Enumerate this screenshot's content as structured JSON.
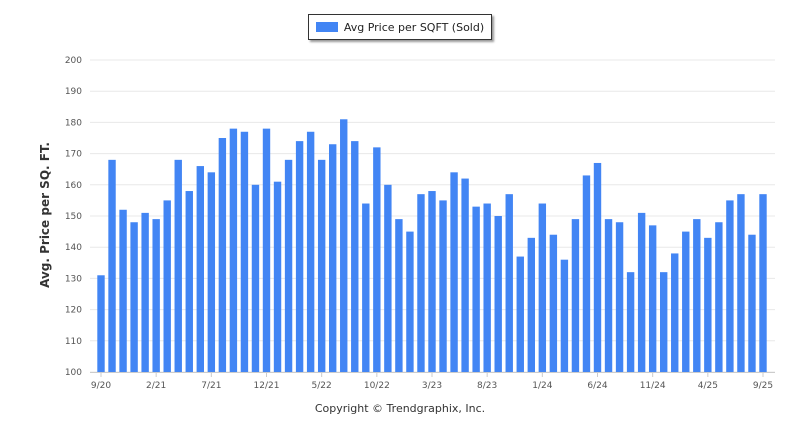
{
  "chart_data": {
    "type": "bar",
    "legend": "Avg Price per SQFT (Sold)",
    "legend_position": "top-center",
    "ylabel": "Avg. Price per SQ. FT.",
    "xlabel": "",
    "ylim": [
      100,
      200
    ],
    "yticks": [
      100,
      110,
      120,
      130,
      140,
      150,
      160,
      170,
      180,
      190,
      200
    ],
    "grid": true,
    "color": "#4285f4",
    "xtick_labels": [
      {
        "index": 0,
        "label": "9/20"
      },
      {
        "index": 5,
        "label": "2/21"
      },
      {
        "index": 10,
        "label": "7/21"
      },
      {
        "index": 15,
        "label": "12/21"
      },
      {
        "index": 20,
        "label": "5/22"
      },
      {
        "index": 25,
        "label": "10/22"
      },
      {
        "index": 30,
        "label": "3/23"
      },
      {
        "index": 35,
        "label": "8/23"
      },
      {
        "index": 40,
        "label": "1/24"
      },
      {
        "index": 45,
        "label": "6/24"
      },
      {
        "index": 50,
        "label": "11/24"
      },
      {
        "index": 55,
        "label": "4/25"
      },
      {
        "index": 60,
        "label": "9/25"
      }
    ],
    "categories": [
      "9/20",
      "10/20",
      "11/20",
      "12/20",
      "1/21",
      "2/21",
      "3/21",
      "4/21",
      "5/21",
      "6/21",
      "7/21",
      "8/21",
      "9/21",
      "10/21",
      "11/21",
      "12/21",
      "1/22",
      "2/22",
      "3/22",
      "4/22",
      "5/22",
      "6/22",
      "7/22",
      "8/22",
      "9/22",
      "10/22",
      "11/22",
      "12/22",
      "1/23",
      "2/23",
      "3/23",
      "4/23",
      "5/23",
      "6/23",
      "7/23",
      "8/23",
      "9/23",
      "10/23",
      "11/23",
      "12/23",
      "1/24",
      "2/24",
      "3/24",
      "4/24",
      "5/24",
      "6/24",
      "7/24",
      "8/24",
      "9/24",
      "10/24",
      "11/24",
      "12/24",
      "1/25",
      "2/25",
      "3/25",
      "4/25",
      "5/25",
      "6/25",
      "7/25",
      "8/25",
      "9/25"
    ],
    "values": [
      131,
      168,
      152,
      148,
      151,
      149,
      155,
      168,
      158,
      166,
      164,
      175,
      178,
      177,
      160,
      178,
      161,
      168,
      174,
      177,
      168,
      173,
      181,
      174,
      154,
      172,
      160,
      149,
      145,
      157,
      158,
      155,
      164,
      162,
      153,
      154,
      150,
      157,
      137,
      143,
      154,
      144,
      136,
      149,
      163,
      167,
      149,
      148,
      132,
      151,
      147,
      132,
      138,
      145,
      149,
      143,
      148,
      155,
      157,
      144,
      157
    ]
  },
  "footer": {
    "copyright": "Copyright © Trendgraphix, Inc."
  }
}
